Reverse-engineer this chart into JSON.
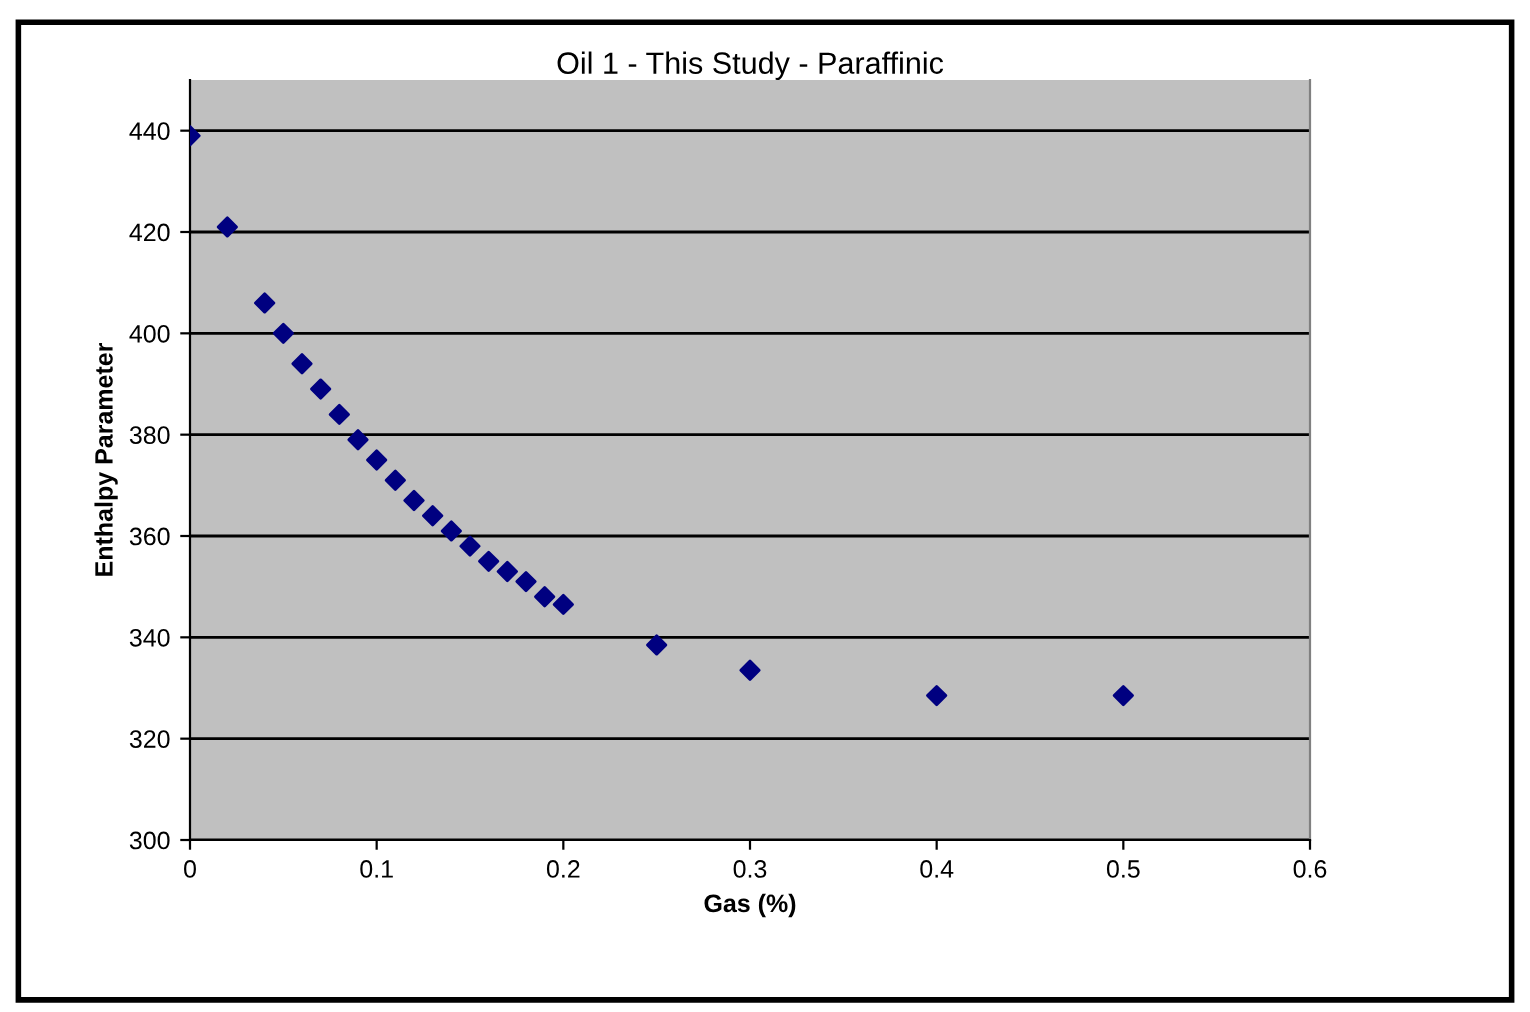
{
  "chart_data": {
    "type": "scatter",
    "title": "Oil 1 - This Study - Paraffinic",
    "xlabel": "Gas (%)",
    "ylabel": "Enthalpy Parameter",
    "x": [
      0,
      0.02,
      0.04,
      0.05,
      0.06,
      0.07,
      0.08,
      0.09,
      0.1,
      0.11,
      0.12,
      0.13,
      0.14,
      0.15,
      0.16,
      0.17,
      0.18,
      0.19,
      0.2,
      0.25,
      0.3,
      0.4,
      0.5
    ],
    "series": [
      {
        "color": "#000080",
        "values": [
          439,
          421,
          406,
          400,
          394,
          389,
          384,
          379,
          375,
          371,
          367,
          364,
          361,
          358,
          355,
          353,
          351,
          348,
          346.5,
          338.5,
          333.5,
          328.5,
          328.5
        ]
      }
    ],
    "xlim": [
      0,
      0.6
    ],
    "xticks": [
      0,
      0.1,
      0.2,
      0.3,
      0.4,
      0.5,
      0.6
    ],
    "ylim": [
      300,
      450
    ],
    "yticks": [
      300,
      320,
      340,
      360,
      380,
      400,
      420,
      440
    ],
    "grid": "y",
    "marker": "diamond",
    "legend": false
  }
}
